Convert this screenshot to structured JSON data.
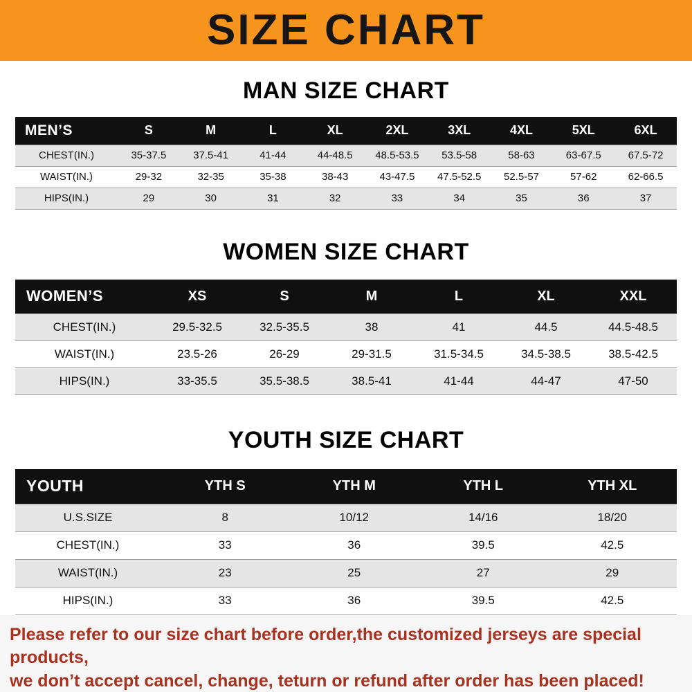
{
  "banner": {
    "title": "SIZE CHART",
    "bg_color": "#F7941D",
    "title_color": "#161616"
  },
  "sections": [
    {
      "heading": "MAN SIZE CHART",
      "table": {
        "header": [
          "MEN’S",
          "S",
          "M",
          "L",
          "XL",
          "2XL",
          "3XL",
          "4XL",
          "5XL",
          "6XL"
        ],
        "rows": [
          [
            "CHEST(IN.)",
            "35-37.5",
            "37.5-41",
            "41-44",
            "44-48.5",
            "48.5-53.5",
            "53.5-58",
            "58-63",
            "63-67.5",
            "67.5-72"
          ],
          [
            "WAIST(IN.)",
            "29-32",
            "32-35",
            "35-38",
            "38-43",
            "43-47.5",
            "47.5-52.5",
            "52.5-57",
            "57-62",
            "62-66.5"
          ],
          [
            "HIPS(IN.)",
            "29",
            "30",
            "31",
            "32",
            "33",
            "34",
            "35",
            "36",
            "37"
          ]
        ]
      }
    },
    {
      "heading": "WOMEN SIZE CHART",
      "table": {
        "header": [
          "WOMEN’S",
          "XS",
          "S",
          "M",
          "L",
          "XL",
          "XXL"
        ],
        "rows": [
          [
            "CHEST(IN.)",
            "29.5-32.5",
            "32.5-35.5",
            "38",
            "41",
            "44.5",
            "44.5-48.5"
          ],
          [
            "WAIST(IN.)",
            "23.5-26",
            "26-29",
            "29-31.5",
            "31.5-34.5",
            "34.5-38.5",
            "38.5-42.5"
          ],
          [
            "HIPS(IN.)",
            "33-35.5",
            "35.5-38.5",
            "38.5-41",
            "41-44",
            "44-47",
            "47-50"
          ]
        ]
      }
    },
    {
      "heading": "YOUTH SIZE CHART",
      "table": {
        "header": [
          "YOUTH",
          "YTH S",
          "YTH M",
          "YTH L",
          "YTH XL"
        ],
        "rows": [
          [
            "U.S.SIZE",
            "8",
            "10/12",
            "14/16",
            "18/20"
          ],
          [
            "CHEST(IN.)",
            "33",
            "36",
            "39.5",
            "42.5"
          ],
          [
            "WAIST(IN.)",
            "23",
            "25",
            "27",
            "29"
          ],
          [
            "HIPS(IN.)",
            "33",
            "36",
            "39.5",
            "42.5"
          ]
        ]
      }
    }
  ],
  "footer": {
    "line1": "Please refer to our size chart before order,the customized jerseys are special products,",
    "line2": "we don’t accept cancel, change, teturn or refund after order has been placed!",
    "text_color": "#A63220"
  }
}
